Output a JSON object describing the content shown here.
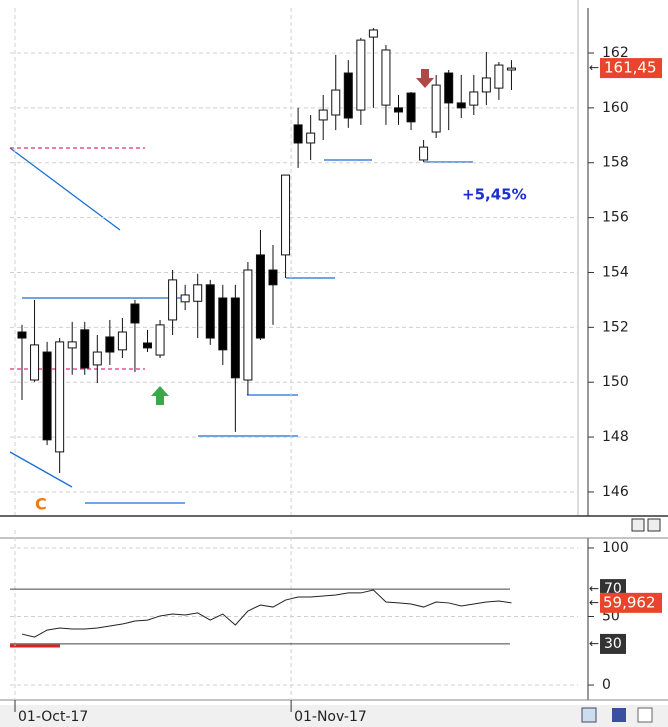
{
  "chart_data": [
    {
      "type": "candlestick",
      "categories": [
        "01-Oct-17",
        null,
        null,
        null,
        null,
        null,
        null,
        null,
        null,
        null,
        null,
        null,
        null,
        null,
        null,
        null,
        null,
        null,
        null,
        null,
        null,
        null,
        "01-Nov-17",
        null,
        null,
        null,
        null,
        null,
        null,
        null,
        null,
        null,
        null,
        null,
        null,
        null,
        null,
        null,
        null,
        null
      ],
      "open": [
        151.83,
        150.08,
        151.1,
        147.46,
        151.25,
        151.91,
        150.63,
        151.65,
        151.18,
        152.85,
        151.43,
        150.99,
        152.27,
        152.93,
        152.95,
        153.55,
        153.07,
        153.07,
        150.08,
        154.64,
        154.09,
        154.64,
        159.38,
        158.72,
        159.56,
        159.74,
        161.27,
        159.92,
        162.58,
        160.1,
        160.0,
        160.54,
        158.1,
        159.12,
        161.27,
        160.18,
        160.1,
        160.58,
        160.72,
        161.38
      ],
      "high": [
        152.09,
        153.0,
        151.47,
        151.61,
        152.2,
        152.2,
        151.72,
        152.27,
        152.34,
        153.0,
        151.91,
        152.27,
        154.09,
        153.55,
        153.95,
        153.73,
        153.55,
        153.55,
        154.38,
        155.55,
        155.0,
        157.55,
        160.0,
        159.74,
        160.47,
        161.93,
        161.74,
        162.55,
        162.91,
        162.29,
        160.47,
        160.58,
        158.83,
        161.2,
        161.38,
        161.2,
        161.2,
        162.04,
        161.67,
        161.74
      ],
      "low": [
        149.35,
        150.01,
        147.71,
        146.69,
        150.27,
        150.27,
        149.97,
        150.63,
        150.88,
        150.37,
        151.1,
        150.88,
        151.72,
        152.63,
        151.61,
        151.36,
        150.63,
        148.19,
        149.54,
        151.54,
        152.09,
        153.8,
        157.81,
        158.1,
        158.83,
        159.19,
        159.27,
        159.38,
        160.0,
        159.38,
        159.38,
        159.19,
        158.03,
        158.9,
        159.19,
        159.63,
        159.74,
        160.1,
        160.29,
        160.65
      ],
      "close": [
        151.61,
        151.36,
        147.9,
        151.47,
        151.47,
        150.52,
        151.1,
        151.1,
        151.83,
        152.16,
        151.25,
        152.09,
        153.73,
        153.18,
        153.55,
        151.61,
        151.18,
        150.16,
        154.09,
        151.61,
        153.55,
        157.55,
        158.72,
        159.08,
        159.92,
        160.65,
        159.63,
        162.47,
        162.84,
        162.11,
        159.85,
        159.49,
        158.57,
        160.83,
        160.18,
        160.0,
        160.58,
        161.09,
        161.56,
        161.45
      ],
      "last_label": "161,45",
      "annotations": [
        "+5,45%",
        "C"
      ],
      "ylim": [
        145.16,
        163.64
      ],
      "yticks": [
        146,
        148,
        150,
        152,
        154,
        156,
        158,
        160,
        162
      ],
      "grid": true
    },
    {
      "type": "line",
      "categories": [
        "01-Oct-17",
        null,
        null,
        null,
        null,
        null,
        null,
        null,
        null,
        null,
        null,
        null,
        null,
        null,
        null,
        null,
        null,
        null,
        null,
        null,
        null,
        null,
        "01-Nov-17",
        null,
        null,
        null,
        null,
        null,
        null,
        null,
        null,
        null,
        null,
        null,
        null,
        null,
        null,
        null,
        null,
        null
      ],
      "values": [
        37.2,
        35.0,
        40.1,
        41.6,
        40.9,
        40.9,
        41.6,
        43.1,
        44.5,
        46.7,
        47.4,
        50.4,
        51.8,
        51.1,
        52.6,
        47.4,
        51.8,
        43.8,
        54.0,
        58.4,
        56.9,
        62.0,
        64.2,
        64.2,
        65.0,
        65.7,
        67.2,
        67.2,
        69.3,
        60.6,
        59.9,
        59.1,
        56.9,
        60.6,
        59.9,
        57.7,
        59.1,
        60.6,
        61.3,
        59.962
      ],
      "last_label": "59,962",
      "color": "#222222",
      "levels": [
        70,
        30
      ],
      "ylim": [
        -10.9,
        113.1
      ],
      "yticks": [
        0,
        50,
        100
      ],
      "grid": true
    }
  ]
}
